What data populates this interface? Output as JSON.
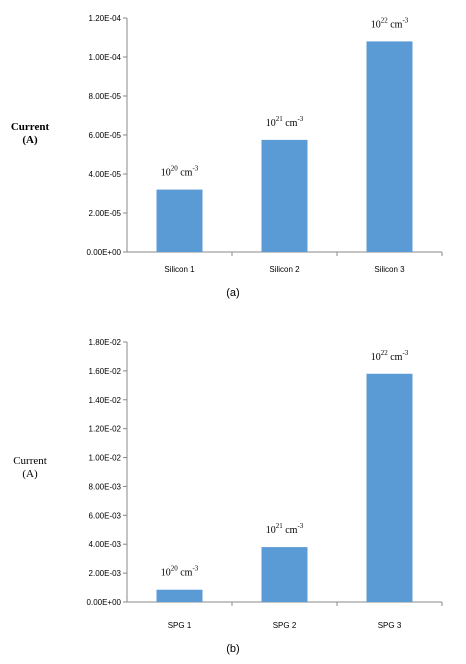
{
  "chart_data": [
    {
      "type": "bar",
      "ylabel": "Current\n(A)",
      "ylim": [
        0,
        0.00012
      ],
      "yticks": [
        "0.00E+00",
        "2.00E-05",
        "4.00E-05",
        "6.00E-05",
        "8.00E-05",
        "1.00E-04",
        "1.20E-04"
      ],
      "categories": [
        "Silicon 1",
        "Silicon 2",
        "Silicon 3"
      ],
      "values": [
        3.2e-05,
        5.75e-05,
        0.000108
      ],
      "annotations": [
        {
          "base": "10",
          "exp": "20",
          "unit": "cm",
          "unit_exp": "-3"
        },
        {
          "base": "10",
          "exp": "21",
          "unit": "cm",
          "unit_exp": "-3"
        },
        {
          "base": "10",
          "exp": "22",
          "unit": "cm",
          "unit_exp": "-3"
        }
      ],
      "panel_label": "(a)",
      "grid": false,
      "bar_color": "#5b9bd5"
    },
    {
      "type": "bar",
      "ylabel": "Current\n(A)",
      "ylim": [
        0,
        0.018
      ],
      "yticks": [
        "0.00E+00",
        "2.00E-03",
        "4.00E-03",
        "6.00E-03",
        "8.00E-03",
        "1.00E-02",
        "1.20E-02",
        "1.40E-02",
        "1.60E-02",
        "1.80E-02"
      ],
      "categories": [
        "SPG 1",
        "SPG 2",
        "SPG 3"
      ],
      "values": [
        0.00085,
        0.0038,
        0.0158
      ],
      "annotations": [
        {
          "base": "10",
          "exp": "20",
          "unit": "cm",
          "unit_exp": "-3"
        },
        {
          "base": "10",
          "exp": "21",
          "unit": "cm",
          "unit_exp": "-3"
        },
        {
          "base": "10",
          "exp": "22",
          "unit": "cm",
          "unit_exp": "-3"
        }
      ],
      "panel_label": "(b)",
      "grid": false,
      "bar_color": "#5b9bd5"
    }
  ]
}
